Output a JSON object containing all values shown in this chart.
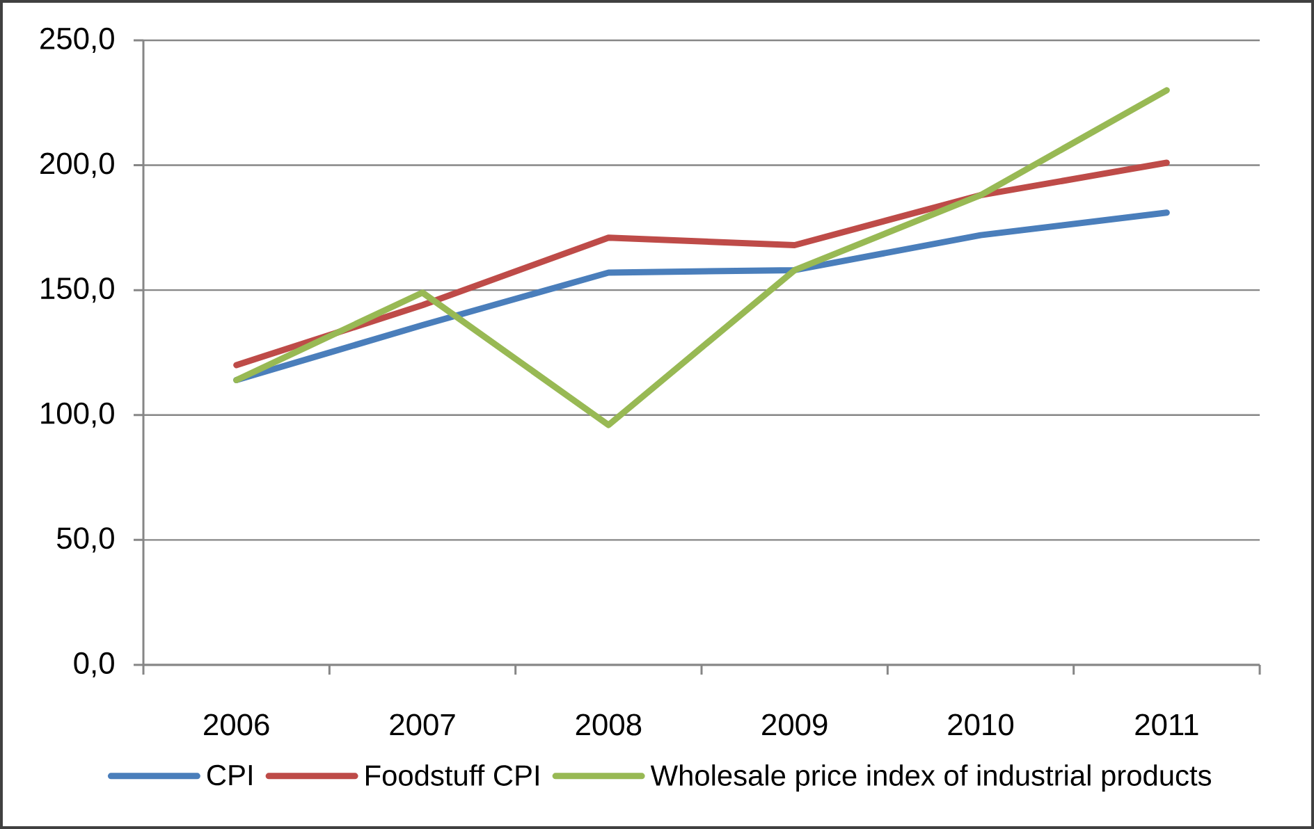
{
  "chart_data": {
    "type": "line",
    "categories": [
      "2006",
      "2007",
      "2008",
      "2009",
      "2010",
      "2011"
    ],
    "series": [
      {
        "name": "CPI",
        "color": "#4a7ebb",
        "values": [
          114,
          136,
          157,
          158,
          172,
          181
        ]
      },
      {
        "name": "Foodstuff CPI",
        "color": "#be4b48",
        "values": [
          120,
          144,
          171,
          168,
          188,
          201
        ]
      },
      {
        "name": "Wholesale price index of industrial products",
        "color": "#98b954",
        "values": [
          114,
          149,
          96,
          158,
          188,
          230
        ]
      }
    ],
    "ylim": [
      0,
      250
    ],
    "yticks": [
      {
        "value": 0,
        "label": "0,0"
      },
      {
        "value": 50,
        "label": "50,0"
      },
      {
        "value": 100,
        "label": "100,0"
      },
      {
        "value": 150,
        "label": "150,0"
      },
      {
        "value": 200,
        "label": "200,0"
      },
      {
        "value": 250,
        "label": "250,0"
      }
    ],
    "grid": "y",
    "legend": "bottom"
  }
}
